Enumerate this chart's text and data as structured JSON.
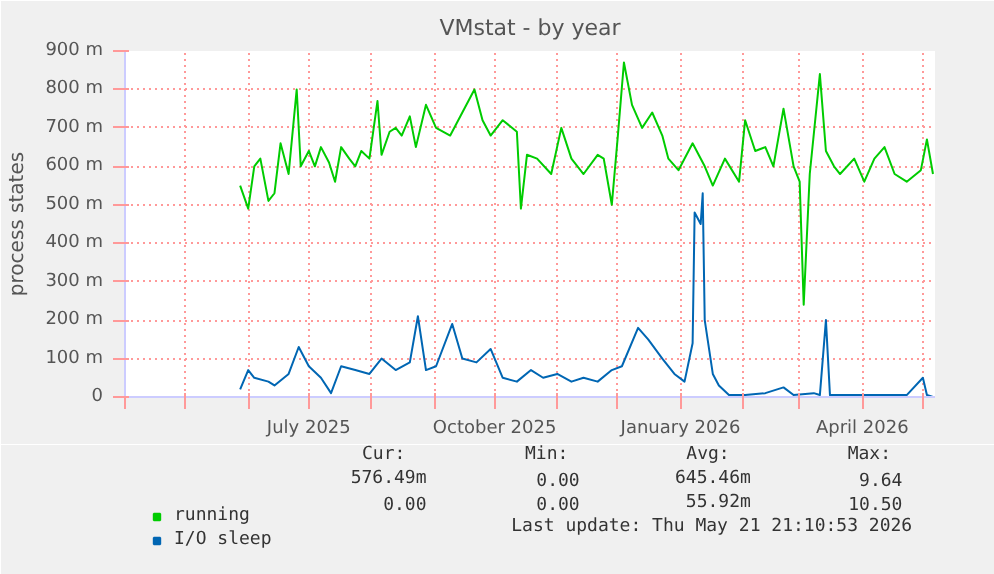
{
  "chart_data": {
    "type": "line",
    "title": "VMstat - by year",
    "ylabel": "process states",
    "xlim": [
      "2025-04-01",
      "2026-05-07"
    ],
    "xticks": [
      {
        "value": "2025-04-01",
        "label": null
      },
      {
        "value": "2025-05-01",
        "label": null
      },
      {
        "value": "2025-06-01",
        "label": null
      },
      {
        "value": "2025-07-01",
        "label": "July 2025"
      },
      {
        "value": "2025-08-01",
        "label": null
      },
      {
        "value": "2025-09-01",
        "label": null
      },
      {
        "value": "2025-10-01",
        "label": "October 2025"
      },
      {
        "value": "2025-11-01",
        "label": null
      },
      {
        "value": "2025-12-01",
        "label": null
      },
      {
        "value": "2026-01-01",
        "label": "January 2026"
      },
      {
        "value": "2026-02-01",
        "label": null
      },
      {
        "value": "2026-03-01",
        "label": null
      },
      {
        "value": "2026-04-01",
        "label": "April 2026"
      },
      {
        "value": "2026-05-01",
        "label": null
      }
    ],
    "ylim": [
      0,
      900
    ],
    "yticks": [
      0,
      {
        "value": 100,
        "label": "100 m"
      },
      {
        "value": 200,
        "label": "200 m"
      },
      {
        "value": 300,
        "label": "300 m"
      },
      {
        "value": 400,
        "label": "400 m"
      },
      {
        "value": 500,
        "label": "500 m"
      },
      {
        "value": 600,
        "label": "600 m"
      },
      {
        "value": 700,
        "label": "700 m"
      },
      {
        "value": 800,
        "label": "800 m"
      },
      {
        "value": 900,
        "label": "900 m"
      }
    ],
    "grid": true,
    "legend": "bottom",
    "series": [
      {
        "name": "running",
        "color": "#00cc00",
        "x": [
          "2025-05-28",
          "2025-06-01",
          "2025-06-04",
          "2025-06-07",
          "2025-06-11",
          "2025-06-14",
          "2025-06-17",
          "2025-06-21",
          "2025-06-25",
          "2025-06-27",
          "2025-07-01",
          "2025-07-04",
          "2025-07-07",
          "2025-07-11",
          "2025-07-14",
          "2025-07-17",
          "2025-07-21",
          "2025-07-24",
          "2025-07-27",
          "2025-07-31",
          "2025-08-04",
          "2025-08-06",
          "2025-08-10",
          "2025-08-13",
          "2025-08-16",
          "2025-08-20",
          "2025-08-23",
          "2025-08-28",
          "2025-09-02",
          "2025-09-09",
          "2025-09-15",
          "2025-09-21",
          "2025-09-25",
          "2025-09-29",
          "2025-10-05",
          "2025-10-12",
          "2025-10-14",
          "2025-10-17",
          "2025-10-22",
          "2025-10-29",
          "2025-11-03",
          "2025-11-08",
          "2025-11-14",
          "2025-11-21",
          "2025-11-24",
          "2025-11-28",
          "2025-12-01",
          "2025-12-04",
          "2025-12-08",
          "2025-12-13",
          "2025-12-18",
          "2025-12-23",
          "2025-12-26",
          "2025-12-31",
          "2026-01-07",
          "2026-01-13",
          "2026-01-17",
          "2026-01-23",
          "2026-01-30",
          "2026-02-02",
          "2026-02-07",
          "2026-02-12",
          "2026-02-16",
          "2026-02-21",
          "2026-02-26",
          "2026-03-01",
          "2026-03-03",
          "2026-03-06",
          "2026-03-11",
          "2026-03-14",
          "2026-03-18",
          "2026-03-21",
          "2026-03-28",
          "2026-04-02",
          "2026-04-07",
          "2026-04-12",
          "2026-04-17",
          "2026-04-23",
          "2026-04-30",
          "2026-05-03",
          "2026-05-06"
        ],
        "values": [
          550,
          490,
          600,
          620,
          510,
          530,
          660,
          580,
          800,
          600,
          640,
          600,
          650,
          610,
          560,
          650,
          620,
          600,
          640,
          620,
          770,
          630,
          690,
          700,
          680,
          730,
          650,
          760,
          700,
          680,
          740,
          800,
          720,
          680,
          720,
          690,
          490,
          630,
          620,
          580,
          700,
          620,
          580,
          630,
          620,
          500,
          680,
          870,
          760,
          700,
          740,
          680,
          620,
          590,
          660,
          600,
          550,
          620,
          560,
          720,
          640,
          650,
          600,
          750,
          600,
          560,
          240,
          580,
          840,
          640,
          600,
          580,
          620,
          560,
          620,
          650,
          580,
          560,
          590,
          670,
          580
        ]
      },
      {
        "name": "I/O sleep",
        "color": "#0066b3",
        "x": [
          "2025-05-28",
          "2025-06-01",
          "2025-06-04",
          "2025-06-11",
          "2025-06-14",
          "2025-06-21",
          "2025-06-26",
          "2025-07-01",
          "2025-07-07",
          "2025-07-12",
          "2025-07-17",
          "2025-07-24",
          "2025-07-31",
          "2025-08-06",
          "2025-08-13",
          "2025-08-20",
          "2025-08-24",
          "2025-08-28",
          "2025-09-02",
          "2025-09-10",
          "2025-09-15",
          "2025-09-22",
          "2025-09-29",
          "2025-10-05",
          "2025-10-12",
          "2025-10-19",
          "2025-10-25",
          "2025-11-01",
          "2025-11-08",
          "2025-11-14",
          "2025-11-21",
          "2025-11-28",
          "2025-12-03",
          "2025-12-11",
          "2025-12-16",
          "2025-12-23",
          "2025-12-29",
          "2026-01-03",
          "2026-01-07",
          "2026-01-08",
          "2026-01-11",
          "2026-01-12",
          "2026-01-13",
          "2026-01-17",
          "2026-01-20",
          "2026-01-25",
          "2026-02-02",
          "2026-02-12",
          "2026-02-21",
          "2026-02-26",
          "2026-03-08",
          "2026-03-11",
          "2026-03-14",
          "2026-03-16",
          "2026-03-28",
          "2026-04-10",
          "2026-04-23",
          "2026-05-01",
          "2026-05-03",
          "2026-05-06"
        ],
        "values": [
          20,
          70,
          50,
          40,
          30,
          60,
          130,
          80,
          50,
          10,
          80,
          70,
          60,
          100,
          70,
          90,
          210,
          70,
          80,
          190,
          100,
          90,
          125,
          50,
          40,
          70,
          50,
          60,
          40,
          50,
          40,
          70,
          80,
          180,
          150,
          100,
          60,
          40,
          140,
          480,
          450,
          530,
          200,
          60,
          30,
          5,
          5,
          10,
          25,
          5,
          10,
          5,
          200,
          5,
          5,
          5,
          5,
          50,
          5,
          0
        ]
      }
    ],
    "annotations": [
      "Cur:",
      "Min:",
      "Avg:",
      "Max:",
      "576.49m",
      "0.00",
      "645.46m",
      "9.64",
      "0.00",
      "0.00",
      "55.92m",
      "10.50",
      "Last update: Thu May 21 21:10:53 2026"
    ]
  }
}
